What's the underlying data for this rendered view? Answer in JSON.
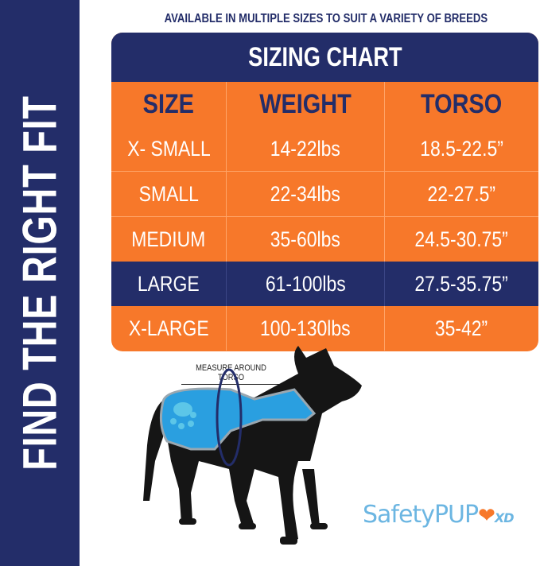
{
  "side_banner": {
    "text": "FIND THE RIGHT FIT"
  },
  "subtitle": "AVAILABLE IN MULTIPLE SIZES TO SUIT A VARIETY OF BREEDS",
  "sizing_chart": {
    "title": "SIZING CHART",
    "headers": [
      "SIZE",
      "WEIGHT",
      "TORSO"
    ],
    "rows": [
      [
        "X- SMALL",
        "14-22lbs",
        "18.5-22.5”"
      ],
      [
        "SMALL",
        "22-34lbs",
        "22-27.5”"
      ],
      [
        "MEDIUM",
        "35-60lbs",
        "24.5-30.75”"
      ],
      [
        "LARGE",
        "61-100lbs",
        "27.5-35.75”"
      ],
      [
        "X-LARGE",
        "100-130lbs",
        "35-42”"
      ]
    ],
    "highlighted_row": "LARGE"
  },
  "measure_label": "MEASURE AROUND TORSO",
  "logo": {
    "text": "SafetyPUP",
    "suffix": "XD"
  },
  "colors": {
    "navy": "#232d69",
    "orange": "#f7782a",
    "vest_blue": "#2a9fe0",
    "logo_blue": "#6cb6e2"
  }
}
